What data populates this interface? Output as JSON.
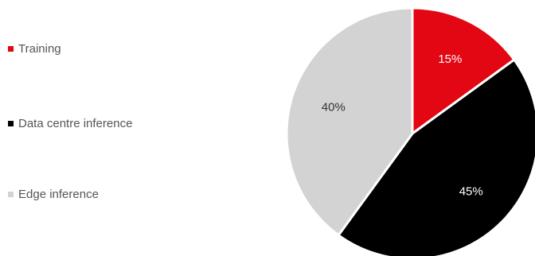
{
  "chart_data": {
    "type": "pie",
    "title": "",
    "legend_position": "left",
    "start_angle_deg": 0,
    "direction": "clockwise",
    "series": [
      {
        "categories": [
          "Training",
          "Data centre inference",
          "Edge inference"
        ],
        "values": [
          15,
          45,
          40
        ],
        "labels": [
          "15%",
          "45%",
          "40%"
        ],
        "colors": [
          "#e30613",
          "#000000",
          "#d3d3d3"
        ],
        "label_colors": [
          "#ffffff",
          "#ffffff",
          "#333333"
        ]
      }
    ]
  }
}
